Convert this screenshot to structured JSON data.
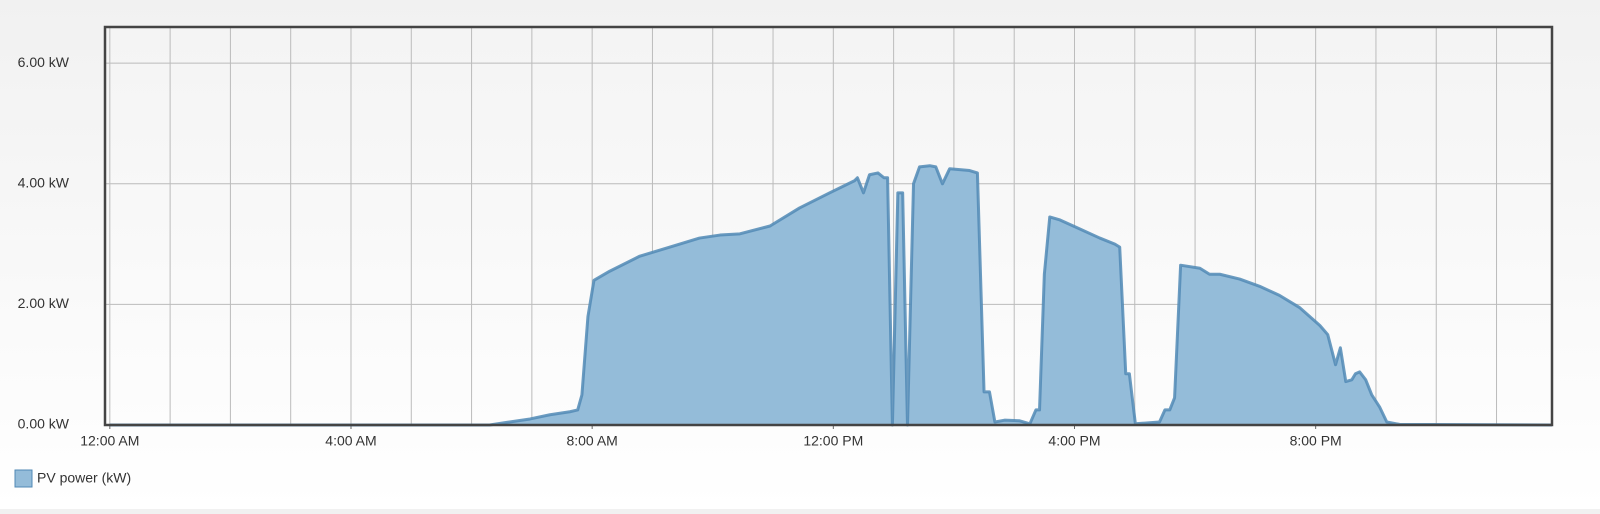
{
  "chart_data": {
    "type": "area",
    "x": [
      0,
      6.3,
      6.63,
      6.97,
      7.3,
      7.63,
      7.76,
      7.83,
      7.93,
      8.03,
      8.29,
      8.79,
      9.29,
      9.78,
      10.12,
      10.45,
      10.95,
      11.44,
      11.94,
      12.35,
      12.4,
      12.5,
      12.6,
      12.74,
      12.84,
      12.9,
      12.98,
      13.07,
      13.15,
      13.23,
      13.33,
      13.43,
      13.6,
      13.7,
      13.81,
      13.93,
      14.26,
      14.39,
      14.5,
      14.59,
      14.68,
      14.84,
      15.09,
      15.26,
      15.36,
      15.42,
      15.5,
      15.59,
      15.76,
      16.09,
      16.42,
      16.67,
      16.75,
      16.85,
      16.91,
      17.01,
      17.41,
      17.5,
      17.58,
      17.66,
      17.76,
      18.08,
      18.24,
      18.41,
      18.74,
      19.07,
      19.4,
      19.73,
      20.07,
      20.2,
      20.33,
      20.41,
      20.5,
      20.6,
      20.66,
      20.73,
      20.83,
      20.93,
      21.06,
      21.18,
      21.39,
      23.92
    ],
    "series": [
      {
        "name": "PV power (kW)",
        "color": "#94bcd9",
        "line_color": "#5189b5",
        "values": [
          0,
          0,
          0.05,
          0.1,
          0.17,
          0.22,
          0.25,
          0.5,
          1.8,
          2.4,
          2.55,
          2.8,
          2.95,
          3.1,
          3.15,
          3.17,
          3.3,
          3.6,
          3.85,
          4.05,
          4.1,
          3.85,
          4.15,
          4.18,
          4.1,
          4.1,
          0,
          3.85,
          3.85,
          0,
          4.0,
          4.28,
          4.3,
          4.28,
          4.0,
          4.25,
          4.22,
          4.18,
          0.55,
          0.55,
          0.05,
          0.08,
          0.07,
          0.02,
          0.25,
          0.25,
          2.5,
          3.45,
          3.4,
          3.25,
          3.1,
          3.0,
          2.95,
          0.85,
          0.85,
          0.02,
          0.05,
          0.25,
          0.25,
          0.45,
          2.65,
          2.6,
          2.5,
          2.5,
          2.42,
          2.3,
          2.15,
          1.95,
          1.65,
          1.5,
          1.0,
          1.28,
          0.72,
          0.75,
          0.85,
          0.88,
          0.75,
          0.5,
          0.3,
          0.05,
          0.01,
          0
        ]
      }
    ],
    "xlim": [
      -0.08,
      23.92
    ],
    "xticks": [
      {
        "value": 0,
        "label": "12:00 AM"
      },
      {
        "value": 4,
        "label": "4:00 AM"
      },
      {
        "value": 8,
        "label": "8:00 AM"
      },
      {
        "value": 12,
        "label": "12:00 PM"
      },
      {
        "value": 16,
        "label": "4:00 PM"
      },
      {
        "value": 20,
        "label": "8:00 PM"
      }
    ],
    "xminorticks": [
      0,
      1,
      2,
      3,
      4,
      5,
      6,
      7,
      8,
      9,
      10,
      11,
      12,
      13,
      14,
      15,
      16,
      17,
      18,
      19,
      20,
      21,
      22,
      23
    ],
    "ylim": [
      0,
      6.6
    ],
    "yticks": [
      {
        "value": 0,
        "label": "0.00 kW"
      },
      {
        "value": 2,
        "label": "2.00 kW"
      },
      {
        "value": 4,
        "label": "4.00 kW"
      },
      {
        "value": 6,
        "label": "6.00 kW"
      }
    ],
    "grid": true,
    "legend": "bottom-left"
  }
}
